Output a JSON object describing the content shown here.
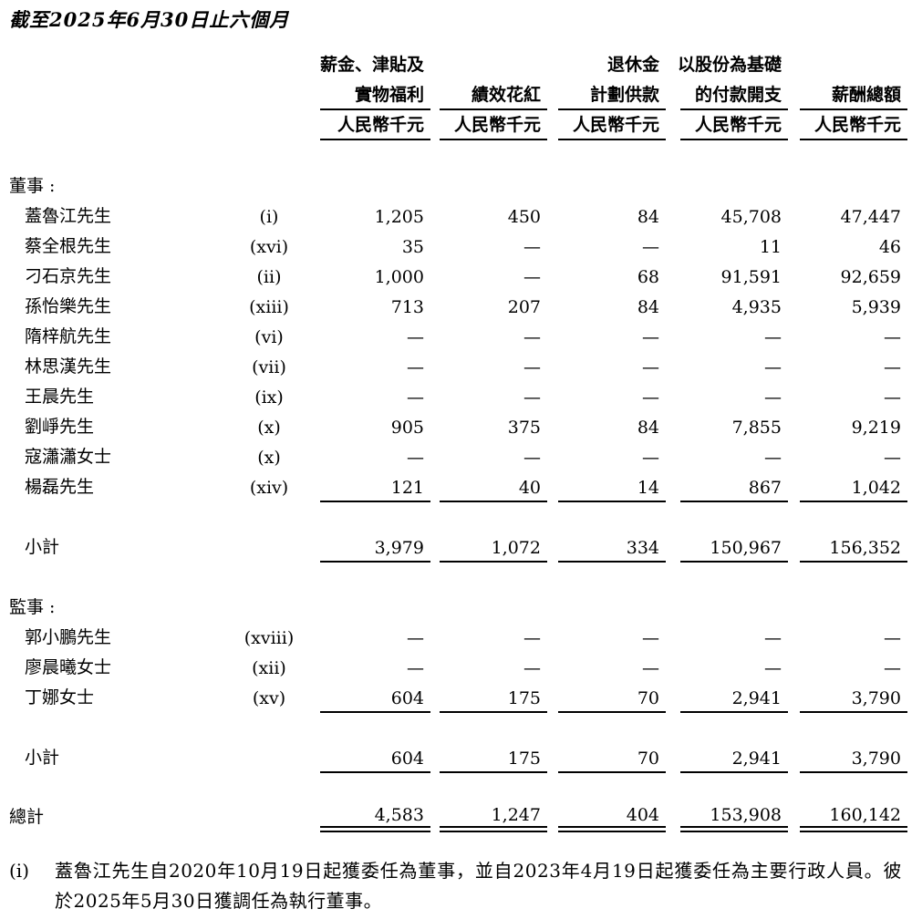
{
  "title": "截至2025年6月30日止六個月",
  "table": {
    "columns": [
      {
        "line1": "薪金、津貼及",
        "line2": "實物福利",
        "unit": "人民幣千元"
      },
      {
        "line1": "",
        "line2": "績效花紅",
        "unit": "人民幣千元"
      },
      {
        "line1": "退休金",
        "line2": "計劃供款",
        "unit": "人民幣千元"
      },
      {
        "line1": "以股份為基礎",
        "line2": "的付款開支",
        "unit": "人民幣千元"
      },
      {
        "line1": "",
        "line2": "薪酬總額",
        "unit": "人民幣千元"
      }
    ],
    "sections": [
      {
        "heading": "董事 :",
        "rows": [
          {
            "name": "蓋魯江先生",
            "note": "(i)",
            "values": [
              "1,205",
              "450",
              "84",
              "45,708",
              "47,447"
            ]
          },
          {
            "name": "蔡全根先生",
            "note": "(xvi)",
            "values": [
              "35",
              "—",
              "—",
              "11",
              "46"
            ]
          },
          {
            "name": "刁石京先生",
            "note": "(ii)",
            "values": [
              "1,000",
              "—",
              "68",
              "91,591",
              "92,659"
            ]
          },
          {
            "name": "孫怡樂先生",
            "note": "(xiii)",
            "values": [
              "713",
              "207",
              "84",
              "4,935",
              "5,939"
            ]
          },
          {
            "name": "隋梓航先生",
            "note": "(vi)",
            "values": [
              "—",
              "—",
              "—",
              "—",
              "—"
            ]
          },
          {
            "name": "林思漢先生",
            "note": "(vii)",
            "values": [
              "—",
              "—",
              "—",
              "—",
              "—"
            ]
          },
          {
            "name": "王晨先生",
            "note": "(ix)",
            "values": [
              "—",
              "—",
              "—",
              "—",
              "—"
            ]
          },
          {
            "name": "劉崢先生",
            "note": "(x)",
            "values": [
              "905",
              "375",
              "84",
              "7,855",
              "9,219"
            ]
          },
          {
            "name": "寇瀟瀟女士",
            "note": "(x)",
            "values": [
              "—",
              "—",
              "—",
              "—",
              "—"
            ]
          },
          {
            "name": "楊磊先生",
            "note": "(xiv)",
            "values": [
              "121",
              "40",
              "14",
              "867",
              "1,042"
            ]
          }
        ],
        "subtotal": {
          "label": "小計",
          "values": [
            "3,979",
            "1,072",
            "334",
            "150,967",
            "156,352"
          ]
        }
      },
      {
        "heading": "監事 :",
        "rows": [
          {
            "name": "郭小鵬先生",
            "note": "(xviii)",
            "values": [
              "—",
              "—",
              "—",
              "—",
              "—"
            ]
          },
          {
            "name": "廖晨曦女士",
            "note": "(xii)",
            "values": [
              "—",
              "—",
              "—",
              "—",
              "—"
            ]
          },
          {
            "name": "丁娜女士",
            "note": "(xv)",
            "values": [
              "604",
              "175",
              "70",
              "2,941",
              "3,790"
            ]
          }
        ],
        "subtotal": {
          "label": "小計",
          "values": [
            "604",
            "175",
            "70",
            "2,941",
            "3,790"
          ]
        }
      }
    ],
    "total": {
      "label": "總計",
      "values": [
        "4,583",
        "1,247",
        "404",
        "153,908",
        "160,142"
      ]
    }
  },
  "footnote": {
    "marker": "(i)",
    "text": "蓋魯江先生自2020年10月19日起獲委任為董事，並自2023年4月19日起獲委任為主要行政人員。彼於2025年5月30日獲調任為執行董事。"
  }
}
